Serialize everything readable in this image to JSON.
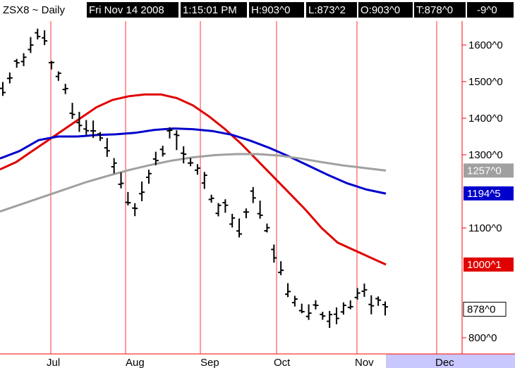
{
  "header": {
    "symbol": "ZSX8 ~ Daily",
    "date": "Fri Nov 14 2008",
    "time": "1:15:01 PM",
    "high": "H:903^0",
    "low": "L:873^2",
    "open": "O:903^0",
    "last": "T:878^0",
    "change": "-9^0"
  },
  "colors": {
    "background": "#ffffff",
    "header_bg": "#000000",
    "axis_line": "#ff0000",
    "future_band": "#c8c8ff",
    "price_bars": "#000000",
    "ma_fast": "#e00000",
    "ma_mid": "#0000cc",
    "ma_slow": "#a0a0a0"
  },
  "chart_data": {
    "type": "line",
    "x_labels": [
      "Jul",
      "Aug",
      "Sep",
      "Oct",
      "Nov",
      "Dec"
    ],
    "y_ticks": [
      "1600^0",
      "1500^0",
      "1400^0",
      "1300^0",
      "1100^0",
      "800^0"
    ],
    "ylim": [
      780,
      1660
    ],
    "price_label": "878^0",
    "ma_labels": [
      "1257^0",
      "1194^5",
      "1000^1"
    ],
    "series": [
      {
        "values": [
          1260,
          1280,
          1310,
          1340,
          1370,
          1400,
          1430,
          1450,
          1460,
          1465,
          1465,
          1455,
          1435,
          1405,
          1370,
          1330,
          1285,
          1240,
          1195,
          1150,
          1100,
          1060,
          1040,
          1020,
          1000
        ]
      },
      {
        "values": [
          1290,
          1310,
          1340,
          1350,
          1350,
          1354,
          1356,
          1360,
          1368,
          1372,
          1370,
          1365,
          1355,
          1338,
          1318,
          1295,
          1270,
          1245,
          1222,
          1205,
          1194
        ]
      },
      {
        "values": [
          1145,
          1165,
          1185,
          1205,
          1225,
          1242,
          1258,
          1272,
          1284,
          1293,
          1299,
          1302,
          1302,
          1298,
          1290,
          1280,
          1271,
          1264,
          1257
        ]
      },
      {
        "values": [
          1480,
          1510,
          1550,
          1560,
          1600,
          1630,
          1620,
          1545,
          1515,
          1480,
          1420,
          1390,
          1375,
          1370,
          1350,
          1320,
          1270,
          1230,
          1180,
          1150,
          1200,
          1240,
          1290,
          1310,
          1360,
          1340,
          1300,
          1280,
          1260,
          1230,
          1180,
          1150,
          1160,
          1120,
          1100,
          1140,
          1190,
          1150,
          1100,
          1030,
          990,
          930,
          900,
          880,
          870,
          890,
          860,
          850,
          860,
          880,
          890,
          920,
          930,
          890,
          900,
          880
        ]
      }
    ]
  }
}
